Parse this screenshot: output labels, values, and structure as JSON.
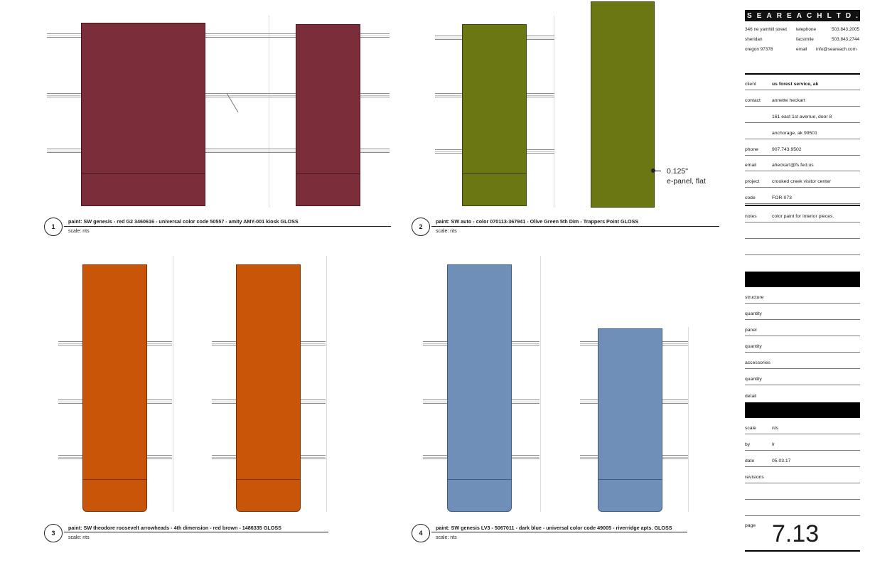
{
  "drawings": [
    {
      "number": "1",
      "caption": "paint: SW genesis - red G2 3460616 - universal color code 50557 - amity AMY-001 kiosk GLOSS",
      "scale": "scale: nts",
      "color": "#7b2d3a"
    },
    {
      "number": "2",
      "caption": "paint: SW auto - color 070113-367941 - Olive Green 5th Dim - Trappers Point GLOSS",
      "scale": "scale: nts",
      "color": "#6b7712",
      "note": "0.125\"\ne-panel, flat"
    },
    {
      "number": "3",
      "caption": "paint: SW theodore roosevelt arrowheads - 4th dimension - red brown - 1486335 GLOSS",
      "scale": "scale: nts",
      "color": "#c85508"
    },
    {
      "number": "4",
      "caption": "paint: SW genesis LV3 - 5067011 - dark blue - universal color code 49005 - riverridge apts. GLOSS",
      "scale": "scale: nts",
      "color": "#6f8fb9"
    }
  ],
  "title_block": {
    "company_letters": [
      "S",
      "E",
      "A",
      "R",
      "E",
      "A",
      "C",
      "H",
      "L",
      "T",
      "D",
      "."
    ],
    "address": {
      "street": "346 ne yamhill street",
      "city": "sheridan",
      "state_zip": "oregon 97378",
      "telephone_label": "telephone",
      "telephone": "503.843.2005",
      "facsimile_label": "facsimile",
      "facsimile": "503.843.2744",
      "email_label": "email",
      "email": "info@seareach.com"
    },
    "client_label": "client",
    "client": "us forest service, ak",
    "contact_label": "contact",
    "contact": "annette heckart",
    "address_line1": "161 east 1st avenue, door 8",
    "address_line2": "anchorage, ak 99501",
    "phone_label": "phone",
    "phone": "907.743.9502",
    "email_label": "email",
    "email": "aheckart@fs.fed.us",
    "project_label": "project",
    "project": "crooked creek visitor center",
    "code_label": "code",
    "code": "FOR-073",
    "notes_label": "notes",
    "notes": "color paint for interior pieces.",
    "structure_label": "structure",
    "quantity_label": "quantity",
    "panel_label": "panel",
    "accessories_label": "accessories",
    "detail_label": "detail",
    "scale_label": "scale",
    "scale": "nts",
    "by_label": "by",
    "by": "lr",
    "date_label": "date",
    "date": "05.03.17",
    "revisions_label": "revisions",
    "page_label": "page",
    "page": "7.13"
  }
}
